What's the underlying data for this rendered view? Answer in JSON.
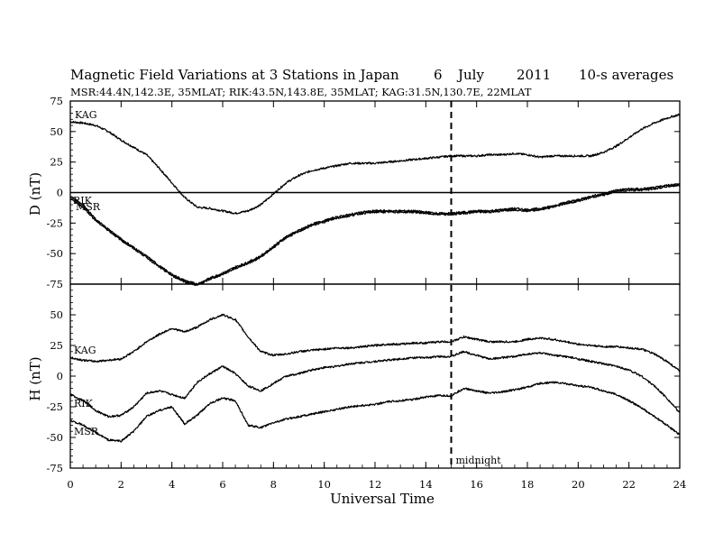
{
  "title": {
    "main": "Magnetic Field Variations at 3 Stations in Japan",
    "day": "6",
    "month": "July",
    "year": "2011",
    "averaging": "10-s averages"
  },
  "subtitle": "MSR:44.4N,142.3E, 35MLAT;  RIK:43.5N,143.8E, 35MLAT;  KAG:31.5N,130.7E, 22MLAT",
  "chart_data": [
    {
      "type": "line",
      "ylabel": "D (nT)",
      "ylim": [
        -75,
        75
      ],
      "yticks": [
        75,
        50,
        25,
        0,
        -25,
        -50,
        -75
      ],
      "xlim": [
        0,
        24
      ],
      "zero_line": true,
      "series": [
        {
          "name": "KAG",
          "x": [
            0,
            0.5,
            1,
            1.5,
            2,
            2.5,
            3,
            3.5,
            4,
            4.5,
            5,
            5.5,
            6,
            6.5,
            7,
            7.5,
            8,
            8.5,
            9,
            9.5,
            10,
            10.5,
            11,
            11.5,
            12,
            12.5,
            13,
            13.5,
            14,
            14.5,
            15,
            15.5,
            16,
            16.5,
            17,
            17.5,
            18,
            18.5,
            19,
            19.5,
            20,
            20.5,
            21,
            21.5,
            22,
            22.5,
            23,
            23.5,
            24
          ],
          "values": [
            58,
            57,
            55,
            50,
            43,
            37,
            31,
            20,
            8,
            -4,
            -12,
            -13,
            -15,
            -17,
            -15,
            -10,
            -1,
            8,
            14,
            18,
            20,
            22,
            24,
            24,
            24,
            25,
            26,
            27,
            28,
            29,
            30,
            30,
            30,
            31,
            31,
            32,
            31,
            29,
            30,
            30,
            30,
            30,
            33,
            38,
            45,
            52,
            57,
            61,
            64
          ]
        },
        {
          "name": "RIK",
          "x": [
            0,
            0.5,
            1,
            1.5,
            2,
            2.5,
            3,
            3.5,
            4,
            4.5,
            5,
            5.5,
            6,
            6.5,
            7,
            7.5,
            8,
            8.5,
            9,
            9.5,
            10,
            10.5,
            11,
            11.5,
            12,
            12.5,
            13,
            13.5,
            14,
            14.5,
            15,
            15.5,
            16,
            16.5,
            17,
            17.5,
            18,
            18.5,
            19,
            19.5,
            20,
            20.5,
            21,
            21.5,
            22,
            22.5,
            23,
            23.5,
            24
          ],
          "values": [
            -3,
            -10,
            -22,
            -30,
            -38,
            -45,
            -52,
            -60,
            -67,
            -72,
            -75,
            -70,
            -66,
            -61,
            -57,
            -52,
            -44,
            -36,
            -31,
            -26,
            -23,
            -20,
            -18,
            -16,
            -15,
            -15,
            -15,
            -15,
            -16,
            -17,
            -17,
            -16,
            -15,
            -15,
            -14,
            -13,
            -14,
            -13,
            -11,
            -8,
            -6,
            -3,
            -1,
            2,
            3,
            3,
            4,
            6,
            7
          ]
        },
        {
          "name": "MSR",
          "x": [
            0,
            0.5,
            1,
            1.5,
            2,
            2.5,
            3,
            3.5,
            4,
            4.5,
            5,
            5.5,
            6,
            6.5,
            7,
            7.5,
            8,
            8.5,
            9,
            9.5,
            10,
            10.5,
            11,
            11.5,
            12,
            12.5,
            13,
            13.5,
            14,
            14.5,
            15,
            15.5,
            16,
            16.5,
            17,
            17.5,
            18,
            18.5,
            19,
            19.5,
            20,
            20.5,
            21,
            21.5,
            22,
            22.5,
            23,
            23.5,
            24
          ],
          "values": [
            -5,
            -12,
            -23,
            -31,
            -39,
            -46,
            -53,
            -61,
            -68,
            -73,
            -76,
            -71,
            -67,
            -62,
            -58,
            -53,
            -45,
            -37,
            -32,
            -27,
            -24,
            -21,
            -19,
            -17,
            -16,
            -16,
            -16,
            -16,
            -17,
            -18,
            -18,
            -17,
            -16,
            -16,
            -15,
            -14,
            -15,
            -14,
            -12,
            -9,
            -7,
            -4,
            -2,
            1,
            2,
            2,
            3,
            5,
            6
          ]
        }
      ]
    },
    {
      "type": "line",
      "ylabel": "H (nT)",
      "ylim": [
        -75,
        75
      ],
      "yticks": [
        50,
        25,
        0,
        -25,
        -50,
        -75
      ],
      "xlim": [
        0,
        24
      ],
      "xlabel": "Universal Time",
      "xticks": [
        0,
        2,
        4,
        6,
        8,
        10,
        12,
        14,
        16,
        18,
        20,
        22,
        24
      ],
      "series": [
        {
          "name": "KAG",
          "x": [
            0,
            0.5,
            1,
            1.5,
            2,
            2.5,
            3,
            3.5,
            4,
            4.5,
            5,
            5.5,
            6,
            6.5,
            7,
            7.5,
            8,
            8.5,
            9,
            9.5,
            10,
            10.5,
            11,
            11.5,
            12,
            12.5,
            13,
            13.5,
            14,
            14.5,
            15,
            15.5,
            16,
            16.5,
            17,
            17.5,
            18,
            18.5,
            19,
            19.5,
            20,
            20.5,
            21,
            21.5,
            22,
            22.5,
            23,
            23.5,
            24
          ],
          "values": [
            15,
            13,
            12,
            13,
            14,
            20,
            28,
            34,
            39,
            36,
            40,
            46,
            50,
            46,
            32,
            20,
            17,
            18,
            20,
            21,
            22,
            23,
            23,
            24,
            25,
            26,
            26,
            27,
            27,
            28,
            28,
            32,
            30,
            28,
            28,
            28,
            30,
            31,
            30,
            28,
            26,
            25,
            24,
            24,
            23,
            22,
            18,
            12,
            4
          ]
        },
        {
          "name": "RIK",
          "x": [
            0,
            0.5,
            1,
            1.5,
            2,
            2.5,
            3,
            3.5,
            4,
            4.5,
            5,
            5.5,
            6,
            6.5,
            7,
            7.5,
            8,
            8.5,
            9,
            9.5,
            10,
            10.5,
            11,
            11.5,
            12,
            12.5,
            13,
            13.5,
            14,
            14.5,
            15,
            15.5,
            16,
            16.5,
            17,
            17.5,
            18,
            18.5,
            19,
            19.5,
            20,
            20.5,
            21,
            21.5,
            22,
            22.5,
            23,
            23.5,
            24
          ],
          "values": [
            -15,
            -20,
            -28,
            -33,
            -32,
            -25,
            -14,
            -12,
            -15,
            -18,
            -5,
            2,
            8,
            2,
            -8,
            -12,
            -6,
            0,
            2,
            5,
            7,
            8,
            10,
            11,
            12,
            13,
            14,
            15,
            15,
            16,
            16,
            20,
            17,
            14,
            15,
            16,
            18,
            19,
            17,
            16,
            14,
            12,
            10,
            8,
            5,
            0,
            -8,
            -18,
            -30
          ]
        },
        {
          "name": "MSR",
          "x": [
            0,
            0.5,
            1,
            1.5,
            2,
            2.5,
            3,
            3.5,
            4,
            4.5,
            5,
            5.5,
            6,
            6.5,
            7,
            7.5,
            8,
            8.5,
            9,
            9.5,
            10,
            10.5,
            11,
            11.5,
            12,
            12.5,
            13,
            13.5,
            14,
            14.5,
            15,
            15.5,
            16,
            16.5,
            17,
            17.5,
            18,
            18.5,
            19,
            19.5,
            20,
            20.5,
            21,
            21.5,
            22,
            22.5,
            23,
            23.5,
            24
          ],
          "values": [
            -36,
            -40,
            -46,
            -52,
            -53,
            -45,
            -33,
            -28,
            -25,
            -39,
            -32,
            -22,
            -18,
            -20,
            -40,
            -42,
            -38,
            -35,
            -33,
            -31,
            -29,
            -27,
            -25,
            -24,
            -23,
            -21,
            -20,
            -19,
            -17,
            -16,
            -16,
            -10,
            -12,
            -14,
            -13,
            -11,
            -9,
            -6,
            -5,
            -6,
            -8,
            -9,
            -12,
            -15,
            -20,
            -26,
            -33,
            -40,
            -48
          ]
        }
      ]
    }
  ],
  "annotation": {
    "text": "midnight",
    "x": 15
  }
}
